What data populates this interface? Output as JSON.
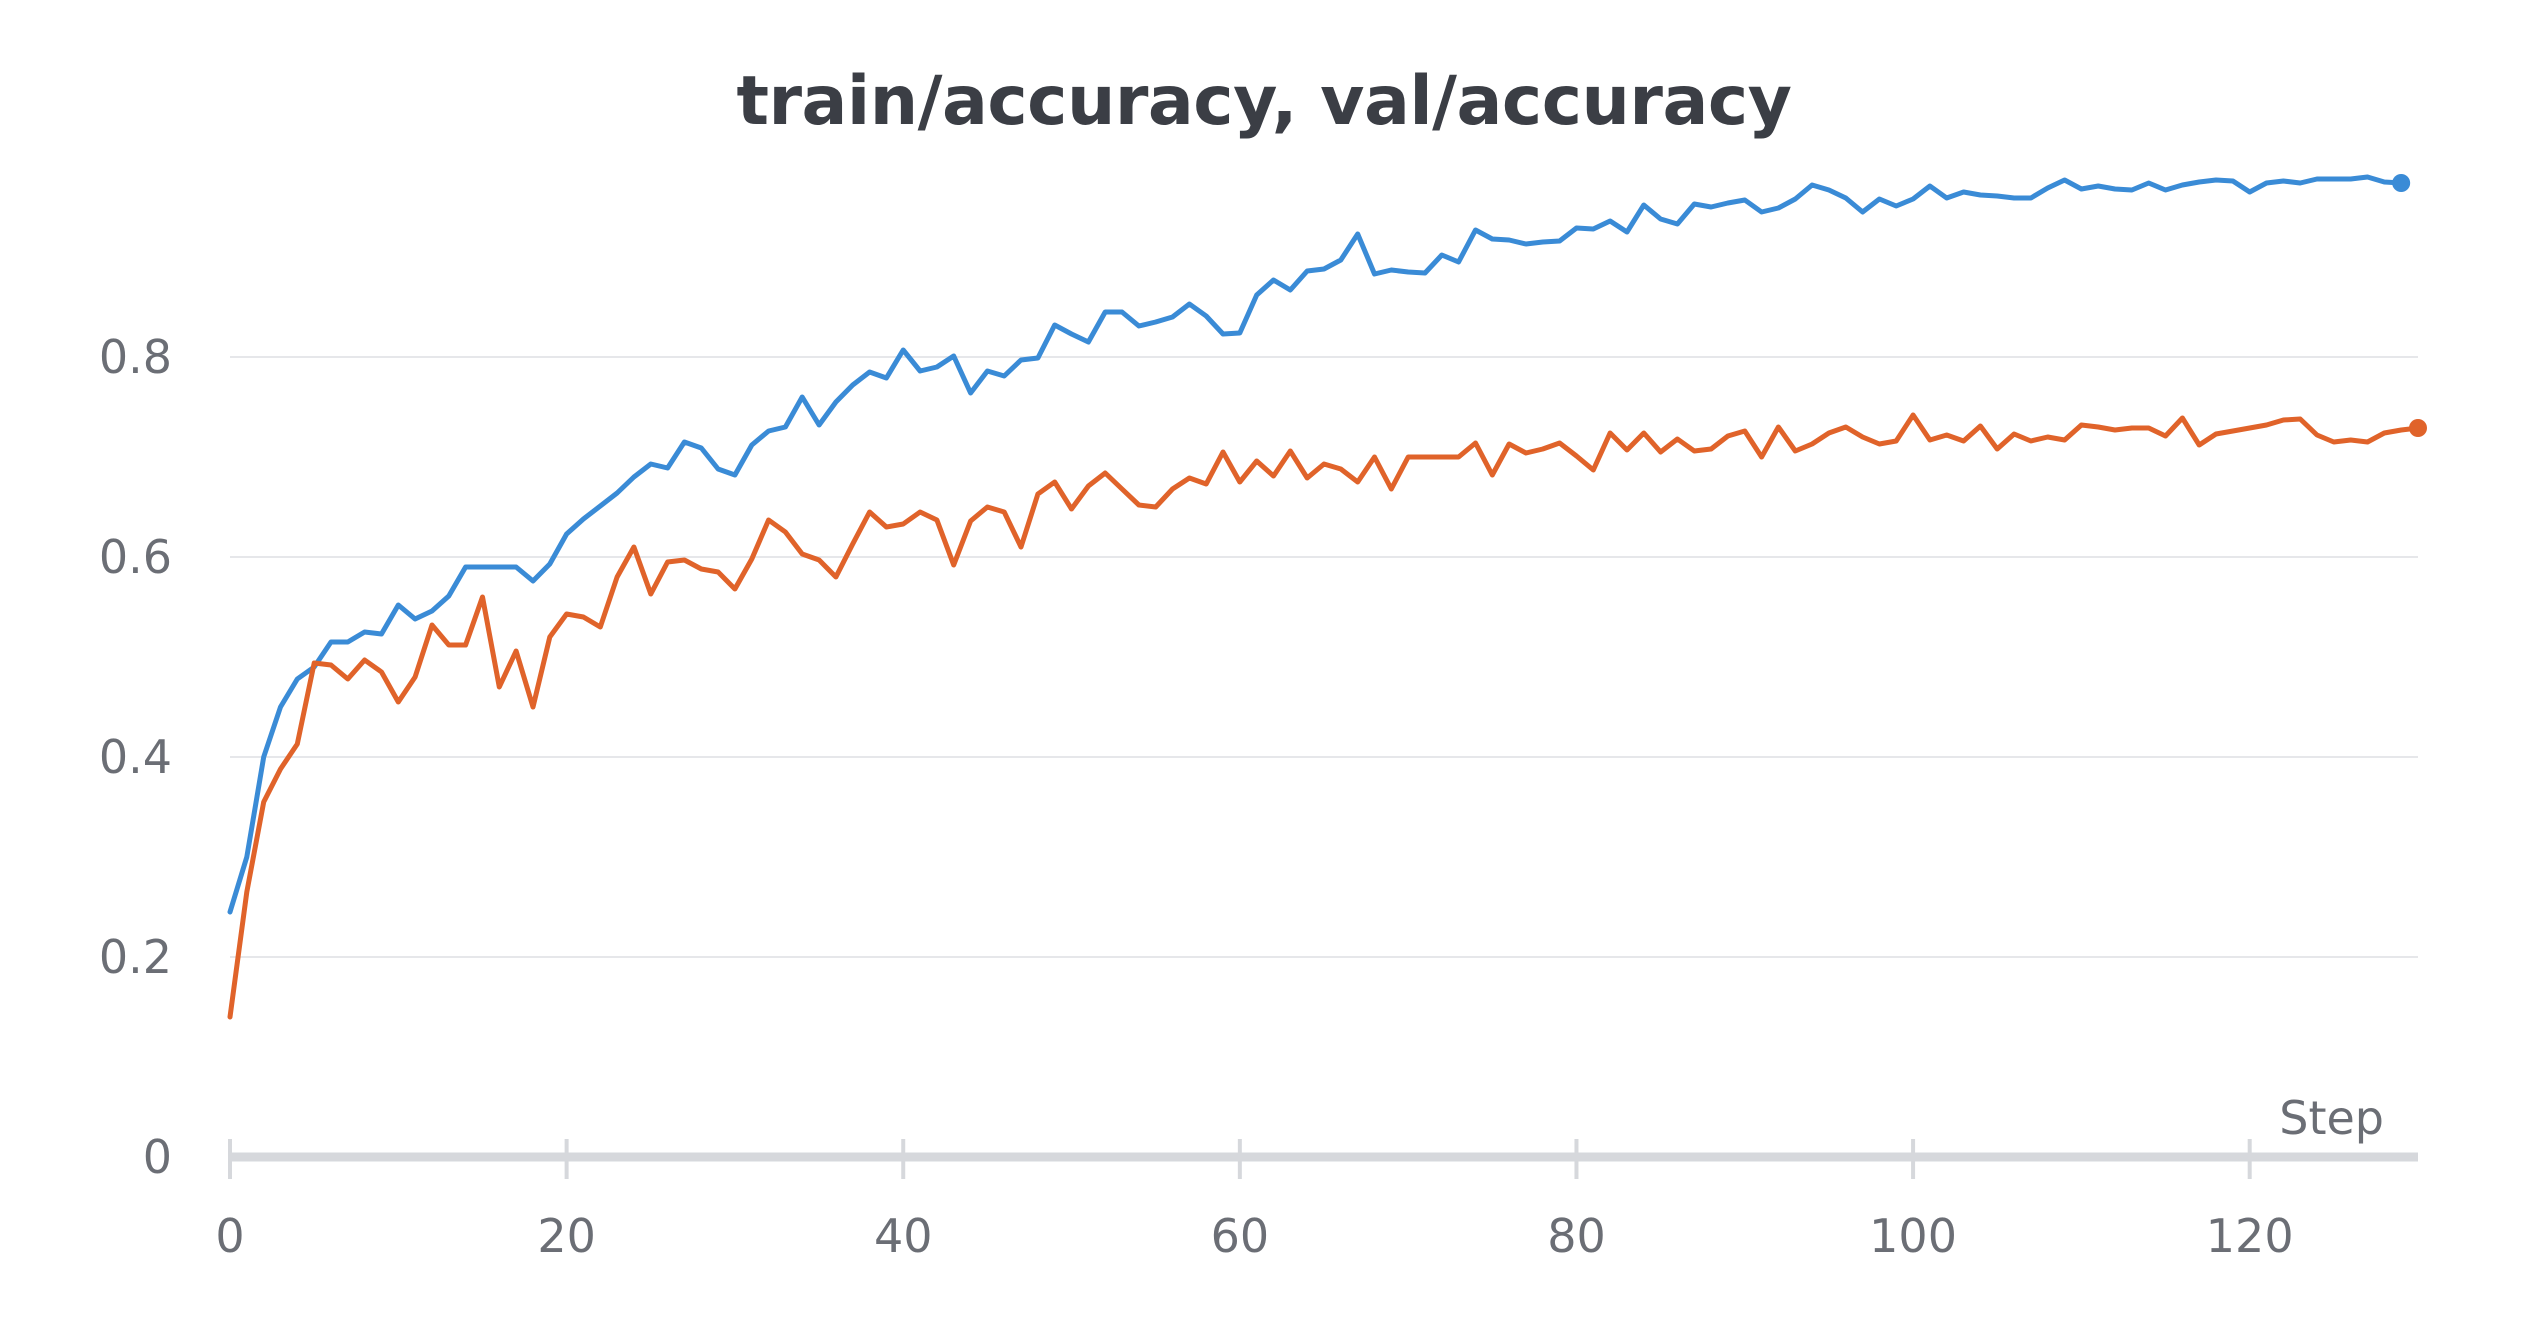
{
  "chart_data": {
    "type": "line",
    "title": "train/accuracy, val/accuracy",
    "xlabel": "Step",
    "ylabel": "",
    "xlim": [
      0,
      130
    ],
    "ylim": [
      0,
      1.0
    ],
    "x_ticks": [
      0,
      20,
      40,
      60,
      80,
      100,
      120
    ],
    "y_ticks": [
      0,
      0.2,
      0.4,
      0.6,
      0.8
    ],
    "x_tick_labels": [
      "0",
      "20",
      "40",
      "60",
      "80",
      "100",
      "120"
    ],
    "y_tick_labels": [
      "0",
      "0.2",
      "0.4",
      "0.6",
      "0.8"
    ],
    "grid": "horizontal",
    "legend": "none",
    "series": [
      {
        "color": "#3a8bd6",
        "x_start": 0,
        "x_step": 1,
        "values": [
          0.245,
          0.3,
          0.4,
          0.45,
          0.478,
          0.49,
          0.515,
          0.515,
          0.525,
          0.523,
          0.552,
          0.538,
          0.546,
          0.561,
          0.59,
          0.59,
          0.59,
          0.59,
          0.576,
          0.593,
          0.623,
          0.638,
          0.651,
          0.664,
          0.68,
          0.693,
          0.689,
          0.715,
          0.709,
          0.688,
          0.682,
          0.712,
          0.726,
          0.73,
          0.76,
          0.732,
          0.755,
          0.772,
          0.785,
          0.779,
          0.807,
          0.786,
          0.79,
          0.801,
          0.764,
          0.786,
          0.781,
          0.797,
          0.799,
          0.832,
          0.823,
          0.815,
          0.845,
          0.845,
          0.831,
          0.835,
          0.84,
          0.853,
          0.841,
          0.823,
          0.824,
          0.862,
          0.877,
          0.867,
          0.886,
          0.888,
          0.897,
          0.923,
          0.883,
          0.887,
          0.885,
          0.884,
          0.902,
          0.895,
          0.927,
          0.918,
          0.917,
          0.913,
          0.915,
          0.916,
          0.929,
          0.928,
          0.936,
          0.925,
          0.952,
          0.938,
          0.933,
          0.953,
          0.95,
          0.954,
          0.957,
          0.945,
          0.949,
          0.958,
          0.972,
          0.967,
          0.959,
          0.945,
          0.958,
          0.951,
          0.958,
          0.971,
          0.959,
          0.965,
          0.962,
          0.961,
          0.959,
          0.959,
          0.969,
          0.977,
          0.968,
          0.971,
          0.968,
          0.967,
          0.974,
          0.967,
          0.972,
          0.975,
          0.977,
          0.976,
          0.965,
          0.974,
          0.976,
          0.974,
          0.978,
          0.978,
          0.978,
          0.98,
          0.975,
          0.974
        ]
      },
      {
        "color": "#e0632a",
        "x_start": 0,
        "x_step": 1,
        "values": [
          0.14,
          0.265,
          0.355,
          0.388,
          0.413,
          0.494,
          0.492,
          0.478,
          0.497,
          0.485,
          0.455,
          0.48,
          0.532,
          0.512,
          0.512,
          0.56,
          0.47,
          0.506,
          0.45,
          0.52,
          0.543,
          0.54,
          0.53,
          0.58,
          0.61,
          0.563,
          0.595,
          0.597,
          0.588,
          0.585,
          0.568,
          0.598,
          0.637,
          0.625,
          0.603,
          0.597,
          0.58,
          0.613,
          0.645,
          0.63,
          0.633,
          0.645,
          0.637,
          0.592,
          0.636,
          0.65,
          0.645,
          0.61,
          0.663,
          0.675,
          0.648,
          0.671,
          0.684,
          0.668,
          0.652,
          0.65,
          0.668,
          0.679,
          0.673,
          0.705,
          0.675,
          0.696,
          0.681,
          0.706,
          0.679,
          0.693,
          0.688,
          0.675,
          0.7,
          0.668,
          0.7,
          0.7,
          0.7,
          0.7,
          0.714,
          0.682,
          0.713,
          0.704,
          0.708,
          0.714,
          0.701,
          0.687,
          0.724,
          0.707,
          0.724,
          0.705,
          0.718,
          0.706,
          0.708,
          0.721,
          0.726,
          0.7,
          0.73,
          0.706,
          0.713,
          0.724,
          0.73,
          0.72,
          0.713,
          0.716,
          0.742,
          0.717,
          0.722,
          0.716,
          0.731,
          0.708,
          0.723,
          0.716,
          0.72,
          0.717,
          0.732,
          0.73,
          0.727,
          0.729,
          0.729,
          0.721,
          0.739,
          0.712,
          0.723,
          0.726,
          0.729,
          0.732,
          0.737,
          0.738,
          0.722,
          0.715,
          0.717,
          0.715,
          0.724,
          0.727,
          0.729
        ]
      }
    ]
  }
}
